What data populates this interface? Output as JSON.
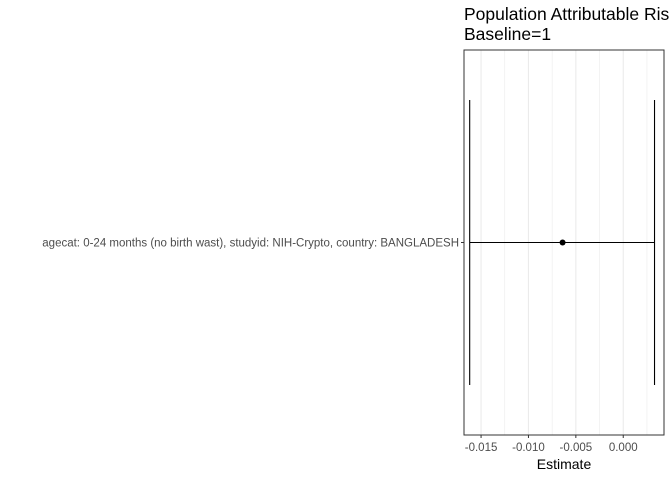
{
  "chart_data": {
    "type": "forest",
    "title_lines": [
      "Population Attributable Ris",
      "Baseline=1"
    ],
    "xlabel": "Estimate",
    "ylabel": "",
    "categories": [
      "agecat: 0-24 months (no birth wast), studyid: NIH-Crypto, country: BANGLADESH"
    ],
    "points": [
      {
        "category": "agecat: 0-24 months (no birth wast), studyid: NIH-Crypto, country: BANGLADESH",
        "estimate": -0.0064,
        "ci_lower": -0.0162,
        "ci_upper": 0.0033
      }
    ],
    "xlim": [
      -0.0168,
      0.0043
    ],
    "x_ticks": [
      -0.015,
      -0.01,
      -0.005,
      0.0
    ],
    "x_tick_labels": [
      "-0.015",
      "-0.010",
      "-0.005",
      "0.000"
    ],
    "grid": true,
    "theme": "bw",
    "colors": {
      "grid": "#ebebeb",
      "panel_border": "#333333",
      "mark": "#000000"
    }
  }
}
